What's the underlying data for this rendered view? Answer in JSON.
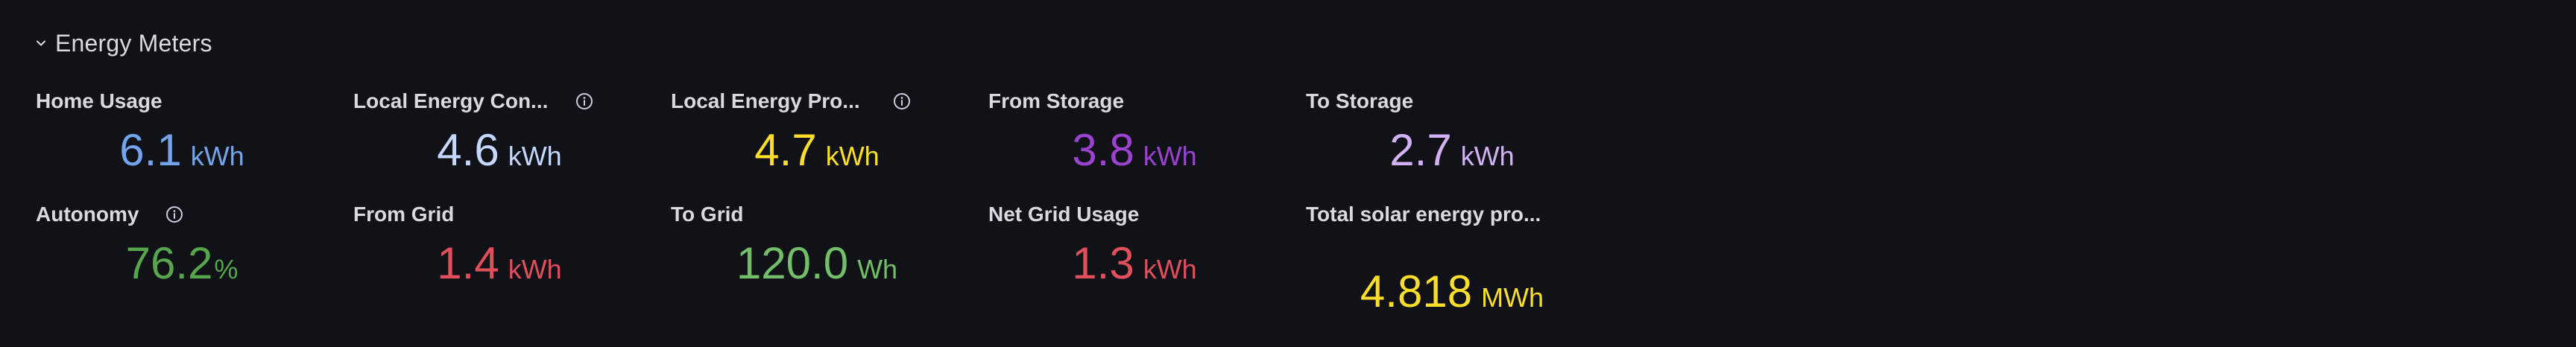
{
  "row": {
    "title": "Energy Meters",
    "expand_icon": "chevron-down-icon"
  },
  "colors": {
    "background": "#111217",
    "title": "#d8d9e1",
    "blue": "#73a4ee",
    "light_blue": "#c4d7ff",
    "yellow": "#fade2a",
    "purple": "#9c42d1",
    "light_purple": "#d3b1f7",
    "green": "#56a64b",
    "light_green": "#73bf69",
    "red": "#e04f5b"
  },
  "panels": {
    "home_usage": {
      "title": "Home Usage",
      "value": "6.1",
      "unit": "kWh"
    },
    "local_consumption": {
      "title": "Local Energy Con...",
      "value": "4.6",
      "unit": "kWh",
      "info_icon": "info-circle-icon"
    },
    "local_production": {
      "title": "Local Energy Pro...",
      "value": "4.7",
      "unit": "kWh",
      "info_icon": "info-circle-icon"
    },
    "from_storage": {
      "title": "From Storage",
      "value": "3.8",
      "unit": "kWh"
    },
    "to_storage": {
      "title": "To Storage",
      "value": "2.7",
      "unit": "kWh"
    },
    "autonomy": {
      "title": "Autonomy",
      "value": "76.2",
      "unit": "%",
      "info_icon": "info-circle-icon"
    },
    "from_grid": {
      "title": "From Grid",
      "value": "1.4",
      "unit": "kWh"
    },
    "to_grid": {
      "title": "To Grid",
      "value": "120.0",
      "unit": "Wh"
    },
    "net_grid_usage": {
      "title": "Net Grid Usage",
      "value": "1.3",
      "unit": "kWh"
    },
    "total_solar": {
      "title": "Total solar energy pro...",
      "value": "4.818",
      "unit": "MWh"
    }
  }
}
